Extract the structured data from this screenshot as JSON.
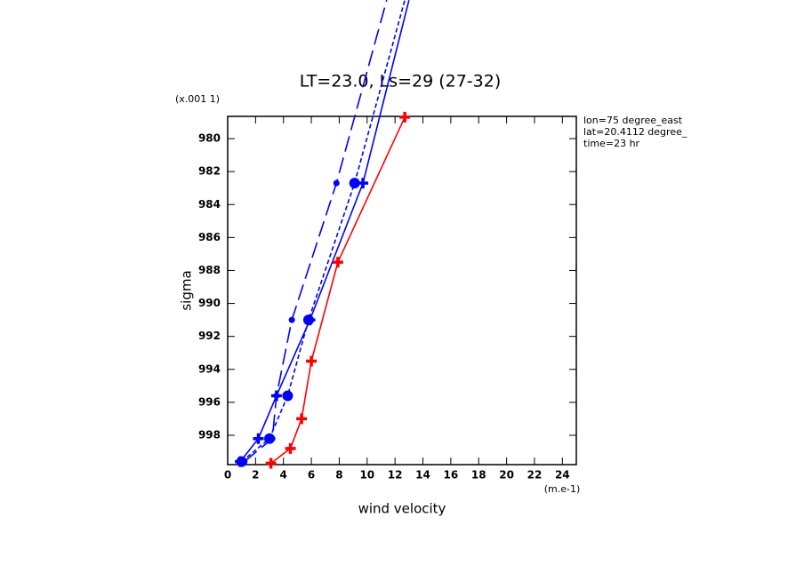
{
  "chart_data": {
    "type": "line",
    "title": "LT=23.0, Ls=29 (27-32)",
    "x_label": "wind velocity",
    "y_label": "sigma",
    "x_units": "(m.e-1)",
    "y_units": "(x.001 1)",
    "annotations": [
      "lon=75 degree_east",
      "lat=20.4112 degree_",
      "time=23 hr"
    ],
    "xlim": [
      0,
      25
    ],
    "xticks": [
      0,
      2,
      4,
      6,
      8,
      10,
      12,
      14,
      16,
      18,
      20,
      22,
      24
    ],
    "ylim": [
      999.78,
      978.65
    ],
    "yticks": [
      980,
      982,
      984,
      986,
      988,
      990,
      992,
      994,
      996,
      998
    ],
    "series": [
      {
        "color": "#0000ff",
        "dash": "solid",
        "x": [
          0.9,
          2.2,
          3.5,
          5.9,
          9.7,
          13.0
        ],
        "values": [
          999.6,
          998.2,
          995.6,
          991.0,
          982.7,
          971.6
        ]
      },
      {
        "color": "#0000ff",
        "dash": "long",
        "x": [
          1.2,
          3.2,
          3.5,
          4.6,
          7.8,
          11.4
        ],
        "values": [
          999.6,
          998.2,
          995.6,
          991.0,
          982.7,
          971.6
        ]
      },
      {
        "color": "#0000ff",
        "dash": "short",
        "x": [
          1.0,
          3.0,
          4.3,
          5.8,
          9.1,
          12.7
        ],
        "values": [
          999.6,
          998.2,
          995.6,
          991.0,
          982.7,
          971.6
        ]
      },
      {
        "color": "#ff0000",
        "dash": "solid",
        "x": [
          3.1,
          4.5,
          5.3,
          6.0,
          7.9,
          12.7
        ],
        "values": [
          999.7,
          998.8,
          997.0,
          993.5,
          987.5,
          978.7
        ]
      }
    ]
  }
}
